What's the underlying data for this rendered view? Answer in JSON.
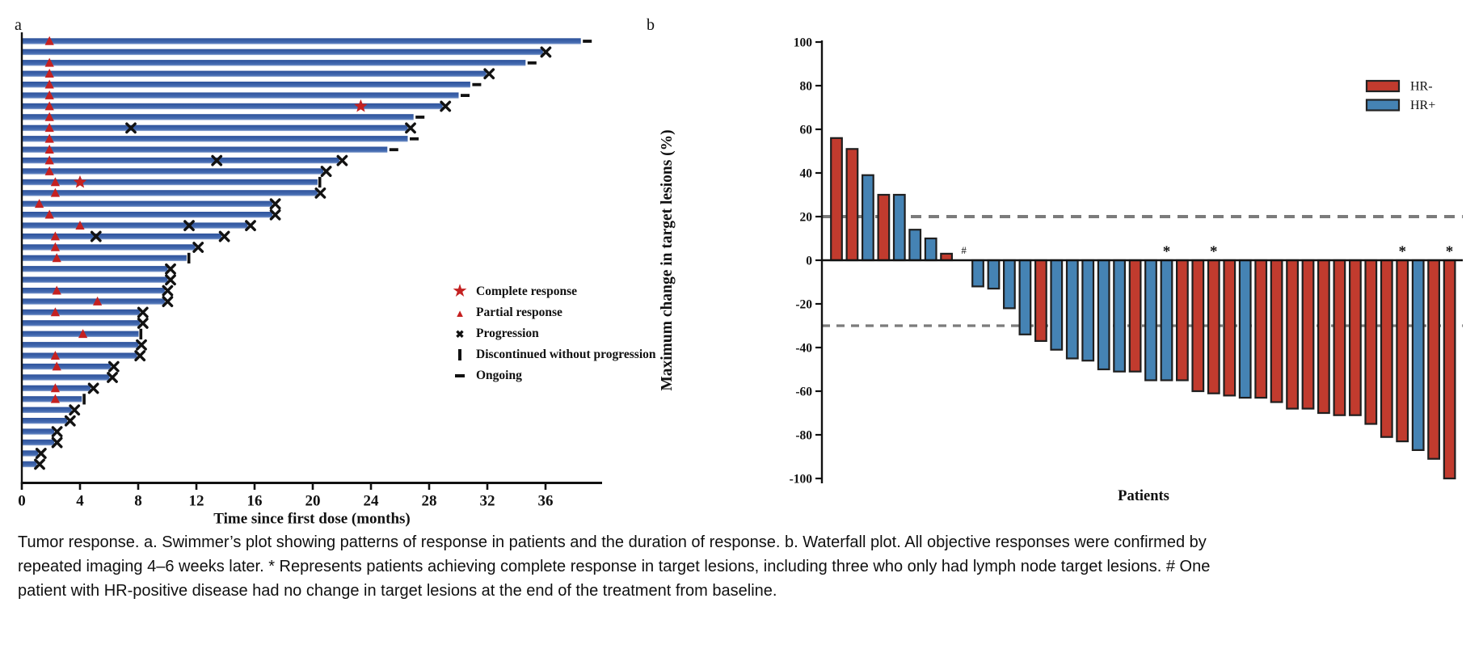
{
  "caption": "Tumor response. a. Swimmer’s plot showing patterns of response in patients and the duration of response. b. Waterfall plot. All objective responses were confirmed by repeated imaging 4–6 weeks later. * Represents patients achieving complete response in target lesions, including three who only had lymph node target lesions. # One patient with HR-positive disease had no change in target lesions at the end of the treatment from baseline.",
  "colors": {
    "swimmer_bar": "#3B61A9",
    "hr_neg": "#C13B2E",
    "hr_pos": "#4583B4",
    "marker_red": "#C42121",
    "dash_gray": "#7B7B7B",
    "ink": "#111111"
  },
  "chart_data": [
    {
      "type": "swimmer",
      "panel_label": "a",
      "xlabel": "Time since first dose (months)",
      "x_ticks": [
        0,
        4,
        8,
        12,
        16,
        20,
        24,
        28,
        32,
        36
      ],
      "xlim": [
        0,
        40
      ],
      "legend": [
        {
          "marker": "star",
          "label": "Complete response"
        },
        {
          "marker": "triangle",
          "label": "Partial response"
        },
        {
          "marker": "cross",
          "label": "Progression"
        },
        {
          "marker": "bar",
          "label": "Discontinued without progression"
        },
        {
          "marker": "dash",
          "label": "Ongoing"
        }
      ],
      "patients": [
        {
          "duration": 38.4,
          "end": "ongoing",
          "pr": [
            1.9
          ]
        },
        {
          "duration": 35.8,
          "end": "progression"
        },
        {
          "duration": 34.6,
          "end": "ongoing",
          "pr": [
            1.9
          ]
        },
        {
          "duration": 31.9,
          "end": "progression",
          "pr": [
            1.9
          ]
        },
        {
          "duration": 30.8,
          "end": "ongoing",
          "pr": [
            1.9
          ]
        },
        {
          "duration": 30.0,
          "end": "ongoing",
          "pr": [
            1.9
          ]
        },
        {
          "duration": 28.9,
          "end": "progression",
          "pr": [
            1.9
          ],
          "cr": [
            23.3
          ]
        },
        {
          "duration": 26.9,
          "end": "ongoing",
          "pr": [
            1.9
          ]
        },
        {
          "duration": 26.5,
          "end": "progression",
          "pr": [
            1.9
          ],
          "prog": [
            7.5
          ]
        },
        {
          "duration": 26.5,
          "end": "ongoing",
          "pr": [
            1.9
          ]
        },
        {
          "duration": 25.1,
          "end": "ongoing",
          "pr": [
            1.9
          ]
        },
        {
          "duration": 21.8,
          "end": "progression",
          "pr": [
            1.9
          ],
          "prog": [
            13.4
          ]
        },
        {
          "duration": 20.7,
          "end": "progression",
          "pr": [
            1.9
          ]
        },
        {
          "duration": 20.3,
          "end": "discontinued",
          "pr": [
            2.3
          ],
          "cr": [
            4.0
          ]
        },
        {
          "duration": 20.3,
          "end": "progression",
          "pr": [
            2.3
          ]
        },
        {
          "duration": 17.2,
          "end": "progression",
          "pr": [
            1.2
          ]
        },
        {
          "duration": 17.2,
          "end": "progression",
          "pr": [
            1.9
          ]
        },
        {
          "duration": 15.5,
          "end": "progression",
          "pr": [
            4.0
          ],
          "prog": [
            11.5
          ]
        },
        {
          "duration": 13.7,
          "end": "progression",
          "pr": [
            2.3
          ],
          "prog": [
            5.1
          ]
        },
        {
          "duration": 11.9,
          "end": "progression",
          "pr": [
            2.3
          ]
        },
        {
          "duration": 11.3,
          "end": "discontinued",
          "pr": [
            2.4
          ]
        },
        {
          "duration": 10.0,
          "end": "progression"
        },
        {
          "duration": 10.0,
          "end": "progression"
        },
        {
          "duration": 9.8,
          "end": "progression",
          "pr": [
            2.4
          ]
        },
        {
          "duration": 9.8,
          "end": "progression",
          "pr": [
            5.2
          ]
        },
        {
          "duration": 8.1,
          "end": "progression",
          "pr": [
            2.3
          ]
        },
        {
          "duration": 8.1,
          "end": "progression"
        },
        {
          "duration": 8.0,
          "end": "discontinued",
          "pr": [
            4.2
          ]
        },
        {
          "duration": 8.0,
          "end": "progression"
        },
        {
          "duration": 7.9,
          "end": "progression",
          "pr": [
            2.3
          ]
        },
        {
          "duration": 6.1,
          "end": "progression",
          "pr": [
            2.4
          ]
        },
        {
          "duration": 6.0,
          "end": "progression"
        },
        {
          "duration": 4.7,
          "end": "progression",
          "pr": [
            2.3
          ]
        },
        {
          "duration": 4.1,
          "end": "discontinued",
          "pr": [
            2.3
          ]
        },
        {
          "duration": 3.4,
          "end": "progression"
        },
        {
          "duration": 3.1,
          "end": "progression"
        },
        {
          "duration": 2.2,
          "end": "progression"
        },
        {
          "duration": 2.2,
          "end": "progression"
        },
        {
          "duration": 1.1,
          "end": "progression"
        },
        {
          "duration": 1.0,
          "end": "progression"
        }
      ]
    },
    {
      "type": "waterfall",
      "panel_label": "b",
      "ylabel": "Maximum change in target lesions (%)",
      "xlabel": "Patients",
      "y_ticks": [
        100,
        80,
        60,
        40,
        20,
        0,
        -20,
        -40,
        -60,
        -80,
        -100
      ],
      "ylim": [
        -100,
        100
      ],
      "reference_lines": [
        20,
        -30
      ],
      "legend": [
        {
          "label": "HR-",
          "group": "HR-"
        },
        {
          "label": "HR+",
          "group": "HR+"
        }
      ],
      "patients": [
        {
          "value": 56,
          "group": "HR-"
        },
        {
          "value": 51,
          "group": "HR-"
        },
        {
          "value": 39,
          "group": "HR+"
        },
        {
          "value": 30,
          "group": "HR-"
        },
        {
          "value": 30,
          "group": "HR+"
        },
        {
          "value": 14,
          "group": "HR+"
        },
        {
          "value": 10,
          "group": "HR+"
        },
        {
          "value": 3,
          "group": "HR-"
        },
        {
          "value": 0,
          "group": "HR+",
          "mark": "#"
        },
        {
          "value": -12,
          "group": "HR+"
        },
        {
          "value": -13,
          "group": "HR+"
        },
        {
          "value": -22,
          "group": "HR+"
        },
        {
          "value": -34,
          "group": "HR+"
        },
        {
          "value": -37,
          "group": "HR-"
        },
        {
          "value": -41,
          "group": "HR+"
        },
        {
          "value": -45,
          "group": "HR+"
        },
        {
          "value": -46,
          "group": "HR+"
        },
        {
          "value": -50,
          "group": "HR+"
        },
        {
          "value": -51,
          "group": "HR+"
        },
        {
          "value": -51,
          "group": "HR-"
        },
        {
          "value": -55,
          "group": "HR+"
        },
        {
          "value": -55,
          "group": "HR+",
          "mark": "*"
        },
        {
          "value": -55,
          "group": "HR-"
        },
        {
          "value": -60,
          "group": "HR-"
        },
        {
          "value": -61,
          "group": "HR-",
          "mark": "*"
        },
        {
          "value": -62,
          "group": "HR-"
        },
        {
          "value": -63,
          "group": "HR+"
        },
        {
          "value": -63,
          "group": "HR-"
        },
        {
          "value": -65,
          "group": "HR-"
        },
        {
          "value": -68,
          "group": "HR-"
        },
        {
          "value": -68,
          "group": "HR-"
        },
        {
          "value": -70,
          "group": "HR-"
        },
        {
          "value": -71,
          "group": "HR-"
        },
        {
          "value": -71,
          "group": "HR-"
        },
        {
          "value": -75,
          "group": "HR-"
        },
        {
          "value": -81,
          "group": "HR-"
        },
        {
          "value": -83,
          "group": "HR-",
          "mark": "*"
        },
        {
          "value": -87,
          "group": "HR+"
        },
        {
          "value": -91,
          "group": "HR-"
        },
        {
          "value": -100,
          "group": "HR-",
          "mark": "*"
        }
      ]
    }
  ]
}
